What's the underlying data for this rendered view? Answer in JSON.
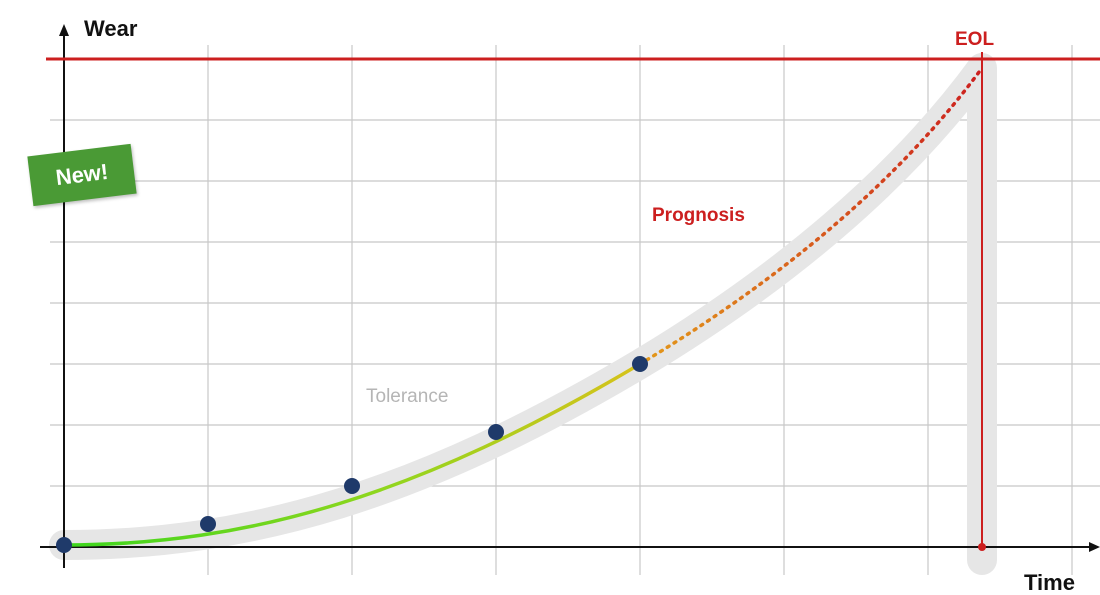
{
  "y_axis": {
    "label": "Wear"
  },
  "x_axis": {
    "label": "Time"
  },
  "eol": {
    "label": "EOL",
    "color": "#cc1f1f"
  },
  "prognosis": {
    "label": "Prognosis",
    "color": "#cc1f1f"
  },
  "tolerance": {
    "label": "Tolerance",
    "color": "#bbbbbb"
  },
  "badge": {
    "label": "New!",
    "color": "#4a9a35"
  },
  "colors": {
    "grid": "#c8c8c8",
    "axis": "#111111",
    "tolerance_band": "#e6e6e6",
    "measured_start": "#3cd61e",
    "measured_end": "#d7c21b",
    "prognosis_start": "#e08a1a",
    "prognosis_end": "#cc1f1f",
    "point": "#1f3a6a"
  }
}
